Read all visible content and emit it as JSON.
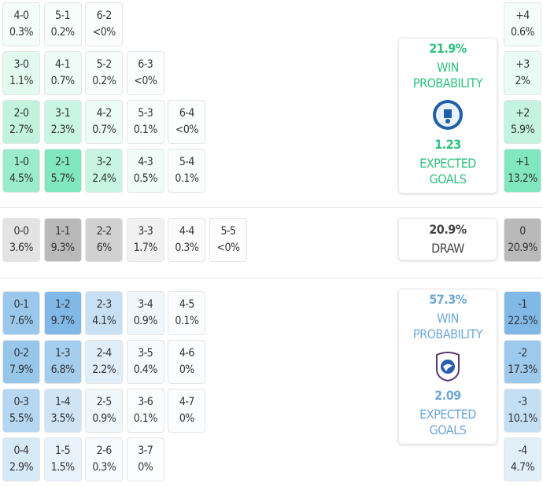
{
  "colors": {
    "home": "#7de6bd",
    "draw": "#b8b8b8",
    "away": "#7db8e6",
    "home_text": "#2ec27e",
    "away_text": "#6fa8d6",
    "draw_text": "#444444"
  },
  "home": {
    "rows": [
      [
        {
          "score": "4-0",
          "pct": "0.3%"
        },
        {
          "score": "5-1",
          "pct": "0.2%"
        },
        {
          "score": "6-2",
          "pct": "<0%"
        }
      ],
      [
        {
          "score": "3-0",
          "pct": "1.1%"
        },
        {
          "score": "4-1",
          "pct": "0.7%"
        },
        {
          "score": "5-2",
          "pct": "0.2%"
        },
        {
          "score": "6-3",
          "pct": "<0%"
        }
      ],
      [
        {
          "score": "2-0",
          "pct": "2.7%"
        },
        {
          "score": "3-1",
          "pct": "2.3%"
        },
        {
          "score": "4-2",
          "pct": "0.7%"
        },
        {
          "score": "5-3",
          "pct": "0.1%"
        },
        {
          "score": "6-4",
          "pct": "<0%"
        }
      ],
      [
        {
          "score": "1-0",
          "pct": "4.5%"
        },
        {
          "score": "2-1",
          "pct": "5.7%"
        },
        {
          "score": "3-2",
          "pct": "2.4%"
        },
        {
          "score": "4-3",
          "pct": "0.5%"
        },
        {
          "score": "5-4",
          "pct": "0.1%"
        }
      ]
    ],
    "margins": [
      {
        "label": "+4",
        "pct": "0.6%"
      },
      {
        "label": "+3",
        "pct": "2%"
      },
      {
        "label": "+2",
        "pct": "5.9%"
      },
      {
        "label": "+1",
        "pct": "13.2%"
      }
    ],
    "win_pct": "21.9%",
    "win_label_1": "WIN",
    "win_label_2": "PROBABILITY",
    "xg": "1.23",
    "xg_label_1": "EXPECTED",
    "xg_label_2": "GOALS",
    "crest_icon": "home-club-crest-icon"
  },
  "draw": {
    "rows": [
      [
        {
          "score": "0-0",
          "pct": "3.6%"
        },
        {
          "score": "1-1",
          "pct": "9.3%"
        },
        {
          "score": "2-2",
          "pct": "6%"
        },
        {
          "score": "3-3",
          "pct": "1.7%"
        },
        {
          "score": "4-4",
          "pct": "0.3%"
        },
        {
          "score": "5-5",
          "pct": "<0%"
        }
      ]
    ],
    "margins": [
      {
        "label": "0",
        "pct": "20.9%"
      }
    ],
    "pct": "20.9%",
    "label": "DRAW"
  },
  "away": {
    "rows": [
      [
        {
          "score": "0-1",
          "pct": "7.6%"
        },
        {
          "score": "1-2",
          "pct": "9.7%"
        },
        {
          "score": "2-3",
          "pct": "4.1%"
        },
        {
          "score": "3-4",
          "pct": "0.9%"
        },
        {
          "score": "4-5",
          "pct": "0.1%"
        }
      ],
      [
        {
          "score": "0-2",
          "pct": "7.9%"
        },
        {
          "score": "1-3",
          "pct": "6.8%"
        },
        {
          "score": "2-4",
          "pct": "2.2%"
        },
        {
          "score": "3-5",
          "pct": "0.4%"
        },
        {
          "score": "4-6",
          "pct": "0%"
        }
      ],
      [
        {
          "score": "0-3",
          "pct": "5.5%"
        },
        {
          "score": "1-4",
          "pct": "3.5%"
        },
        {
          "score": "2-5",
          "pct": "0.9%"
        },
        {
          "score": "3-6",
          "pct": "0.1%"
        },
        {
          "score": "4-7",
          "pct": "0%"
        }
      ],
      [
        {
          "score": "0-4",
          "pct": "2.9%"
        },
        {
          "score": "1-5",
          "pct": "1.5%"
        },
        {
          "score": "2-6",
          "pct": "0.3%"
        },
        {
          "score": "3-7",
          "pct": "0%"
        }
      ]
    ],
    "margins": [
      {
        "label": "-1",
        "pct": "22.5%"
      },
      {
        "label": "-2",
        "pct": "17.3%"
      },
      {
        "label": "-3",
        "pct": "10.1%"
      },
      {
        "label": "-4",
        "pct": "4.7%"
      }
    ],
    "win_pct": "57.3%",
    "win_label_1": "WIN",
    "win_label_2": "PROBABILITY",
    "xg": "2.09",
    "xg_label_1": "EXPECTED",
    "xg_label_2": "GOALS",
    "crest_icon": "away-club-crest-icon"
  }
}
